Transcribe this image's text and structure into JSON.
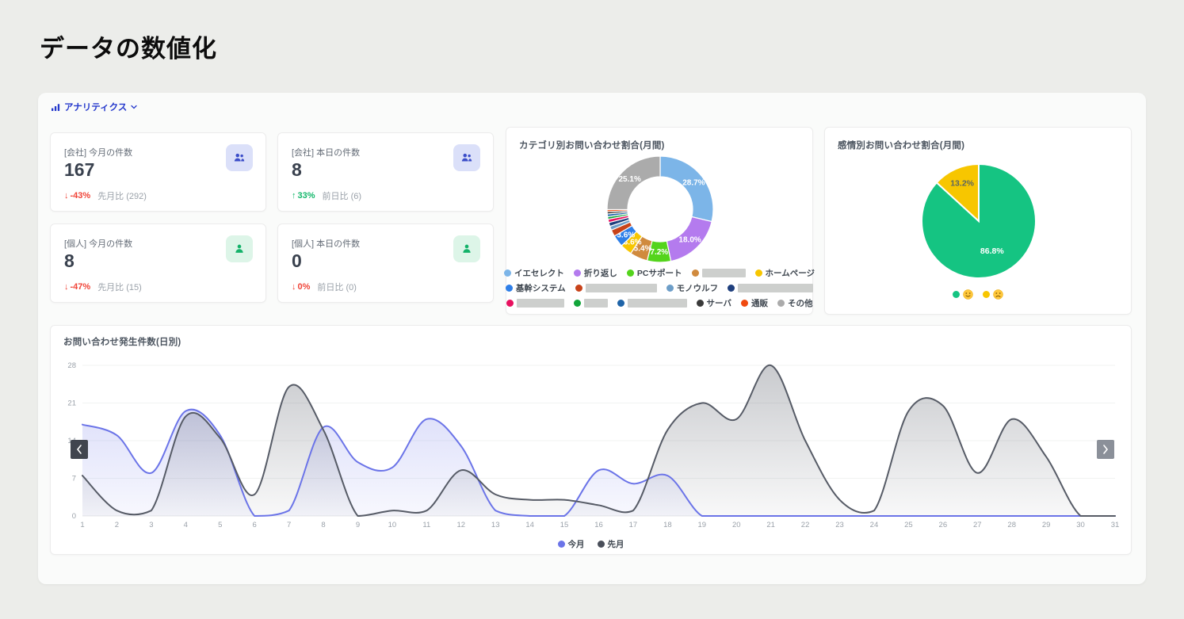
{
  "page": {
    "title": "データの数値化"
  },
  "header": {
    "label": "アナリティクス",
    "icon": "bar-chart-icon",
    "chevron_icon": "chevron-down-icon",
    "accent_color": "#2438cc"
  },
  "stat_cards": [
    {
      "label": "[会社] 今月の件数",
      "value": "167",
      "arrow": "↓",
      "delta": "-43%",
      "sub": "先月比 (292)",
      "trend": "down",
      "delta_color": "#f04438",
      "icon": "people-icon",
      "icon_bg": "#dbe0f9",
      "icon_color": "#3c4ec9"
    },
    {
      "label": "[会社] 本日の件数",
      "value": "8",
      "arrow": "↑",
      "delta": "33%",
      "sub": "前日比 (6)",
      "trend": "up",
      "delta_color": "#12b76a",
      "icon": "people-icon",
      "icon_bg": "#dbe0f9",
      "icon_color": "#3c4ec9"
    },
    {
      "label": "[個人] 今月の件数",
      "value": "8",
      "arrow": "↓",
      "delta": "-47%",
      "sub": "先月比 (15)",
      "trend": "down",
      "delta_color": "#f04438",
      "icon": "person-icon",
      "icon_bg": "#ddf5e8",
      "icon_color": "#13b269"
    },
    {
      "label": "[個人] 本日の件数",
      "value": "0",
      "arrow": "↓",
      "delta": "0%",
      "sub": "前日比 (0)",
      "trend": "down",
      "delta_color": "#f04438",
      "icon": "person-icon",
      "icon_bg": "#ddf5e8",
      "icon_color": "#13b269"
    }
  ],
  "chart_data": [
    {
      "type": "pie",
      "variant": "donut",
      "title": "カテゴリ別お問い合わせ割合(月間)",
      "legend_position": "bottom",
      "legend_rows": [
        5,
        4,
        6
      ],
      "label_min_pct": 3.2,
      "slices": [
        {
          "label": "イエセレクト",
          "value": 28.7,
          "color": "#7cb5e8"
        },
        {
          "label": "折り返し",
          "value": 18.0,
          "color": "#b47bee"
        },
        {
          "label": "PCサポート",
          "value": 7.2,
          "color": "#54d41c"
        },
        {
          "label": "",
          "redacted": true,
          "redacted_width": 55,
          "value": 5.4,
          "color": "#d08a3e"
        },
        {
          "label": "ホームページ",
          "value": 3.6,
          "color": "#f7c600"
        },
        {
          "label": "基幹システム",
          "value": 3.6,
          "color": "#2e7fe8"
        },
        {
          "label": "",
          "redacted": true,
          "redacted_width": 90,
          "value": 2.0,
          "color": "#c8431a"
        },
        {
          "label": "モノウルフ",
          "value": 1.2,
          "color": "#6d9ec8"
        },
        {
          "label": "",
          "redacted": true,
          "redacted_width": 95,
          "value": 1.2,
          "color": "#1f3f7d"
        },
        {
          "label": "",
          "redacted": true,
          "redacted_width": 60,
          "value": 1.0,
          "color": "#e8115f"
        },
        {
          "label": "",
          "redacted": true,
          "redacted_width": 30,
          "value": 0.8,
          "color": "#12a53a"
        },
        {
          "label": "",
          "redacted": true,
          "redacted_width": 75,
          "value": 0.8,
          "color": "#1f64a8"
        },
        {
          "label": "サーバ",
          "value": 0.7,
          "color": "#3a3a3a"
        },
        {
          "label": "通販",
          "value": 0.6,
          "color": "#f04a0f"
        },
        {
          "label": "その他",
          "value": 25.1,
          "color": "#ababab"
        }
      ]
    },
    {
      "type": "pie",
      "title": "感情別お問い合わせ割合(月間)",
      "legend_position": "bottom",
      "slices": [
        {
          "label": "",
          "face": "smiley-icon",
          "value": 86.8,
          "color": "#15c482",
          "label_color": "#ffffff",
          "label_radius": 0.58
        },
        {
          "label": "",
          "face": "sad-face-icon",
          "value": 13.2,
          "color": "#f7c600",
          "label_color": "#5c6660",
          "label_radius": 0.72
        }
      ]
    },
    {
      "type": "line",
      "title": "お問い合わせ発生件数(日別)",
      "x": [
        1,
        2,
        3,
        4,
        5,
        6,
        7,
        8,
        9,
        10,
        11,
        12,
        13,
        14,
        15,
        16,
        17,
        18,
        19,
        20,
        21,
        22,
        23,
        24,
        25,
        26,
        27,
        28,
        29,
        30,
        31
      ],
      "ylim": [
        0,
        28
      ],
      "yticks": [
        0,
        7,
        14,
        21,
        28
      ],
      "grid": true,
      "legend_position": "bottom",
      "nav": {
        "left": "chevron-left-icon",
        "right": "chevron-right-icon"
      },
      "series": [
        {
          "name": "今月",
          "color": "#6b74e8",
          "dot_color": "#6b74e8",
          "values": [
            17,
            15,
            8,
            19.5,
            15,
            0,
            1,
            16.5,
            10,
            9,
            18,
            13,
            1,
            0,
            0,
            8.5,
            6,
            7.5,
            0,
            0,
            0,
            0,
            0,
            0,
            0,
            0,
            0,
            0,
            0,
            0,
            0
          ]
        },
        {
          "name": "先月",
          "color": "#565b66",
          "dot_color": "#4a4f5a",
          "values": [
            7.5,
            1,
            1,
            18.5,
            14.5,
            4,
            24,
            16,
            0,
            1,
            1,
            8.5,
            4,
            3,
            3,
            2,
            1,
            16,
            21,
            18,
            28,
            14,
            3,
            1,
            19.5,
            20.5,
            8,
            18,
            11,
            0,
            0
          ]
        }
      ]
    }
  ]
}
